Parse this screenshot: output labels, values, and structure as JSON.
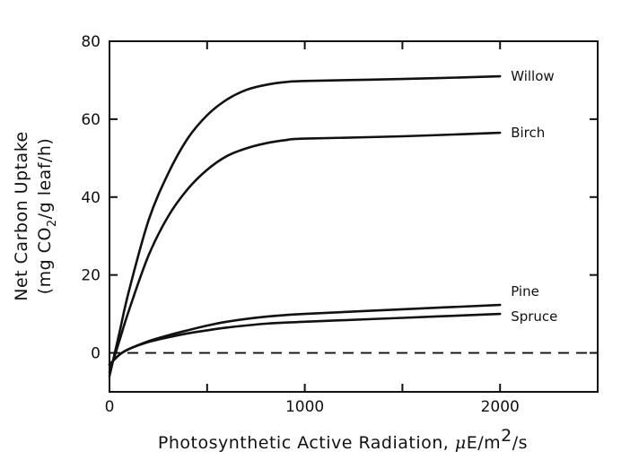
{
  "chart_data": {
    "type": "line",
    "title": "",
    "xlabel": "Photosynthetic Active Radiation, μE/m²/s",
    "xlabel_parts": {
      "prefix": "Photosynthetic Active Radiation,",
      "mu": "μ",
      "unit_a": "E/m",
      "sup": "2",
      "unit_b": "/s"
    },
    "ylabel": "Net Carbon Uptake (mg CO₂/g leaf/h)",
    "ylabel_parts": {
      "line1": "Net Carbon Uptake",
      "line2_prefix": "(mg CO",
      "line2_sub": "2",
      "line2_suffix": "/g leaf/h)"
    },
    "xlim": [
      0,
      2500
    ],
    "ylim": [
      -10,
      80
    ],
    "xticks": [
      0,
      1000,
      2000
    ],
    "xtick_labels": [
      "0",
      "1000",
      "2000"
    ],
    "yticks": [
      0,
      20,
      40,
      60,
      80
    ],
    "ytick_labels": [
      "0",
      "20",
      "40",
      "60",
      "80"
    ],
    "grid": false,
    "reference_line": {
      "y": 0,
      "style": "dashed"
    },
    "series": [
      {
        "name": "Willow",
        "x": [
          0,
          50,
          100,
          200,
          300,
          400,
          500,
          600,
          700,
          800,
          900,
          1000,
          1500,
          2000
        ],
        "y": [
          -6,
          5,
          16,
          34,
          46,
          55,
          61,
          65,
          67.5,
          68.8,
          69.5,
          69.8,
          70.3,
          71
        ]
      },
      {
        "name": "Birch",
        "x": [
          0,
          50,
          100,
          200,
          300,
          400,
          500,
          600,
          700,
          800,
          900,
          1000,
          1500,
          2000
        ],
        "y": [
          -5,
          3,
          11,
          25,
          35,
          42,
          47,
          50.5,
          52.5,
          53.8,
          54.6,
          55,
          55.6,
          56.5
        ]
      },
      {
        "name": "Pine",
        "x": [
          0,
          50,
          100,
          200,
          300,
          400,
          500,
          600,
          800,
          1000,
          1500,
          2000
        ],
        "y": [
          -3,
          -0.5,
          1,
          3,
          4.5,
          5.8,
          7,
          8,
          9.3,
          10,
          11.2,
          12.3
        ]
      },
      {
        "name": "Spruce",
        "x": [
          0,
          50,
          100,
          200,
          300,
          400,
          500,
          600,
          800,
          1000,
          1500,
          2000
        ],
        "y": [
          -3,
          -0.5,
          1,
          2.8,
          4,
          5,
          5.8,
          6.5,
          7.5,
          8,
          9,
          10
        ]
      }
    ],
    "line_color": "#111111"
  }
}
